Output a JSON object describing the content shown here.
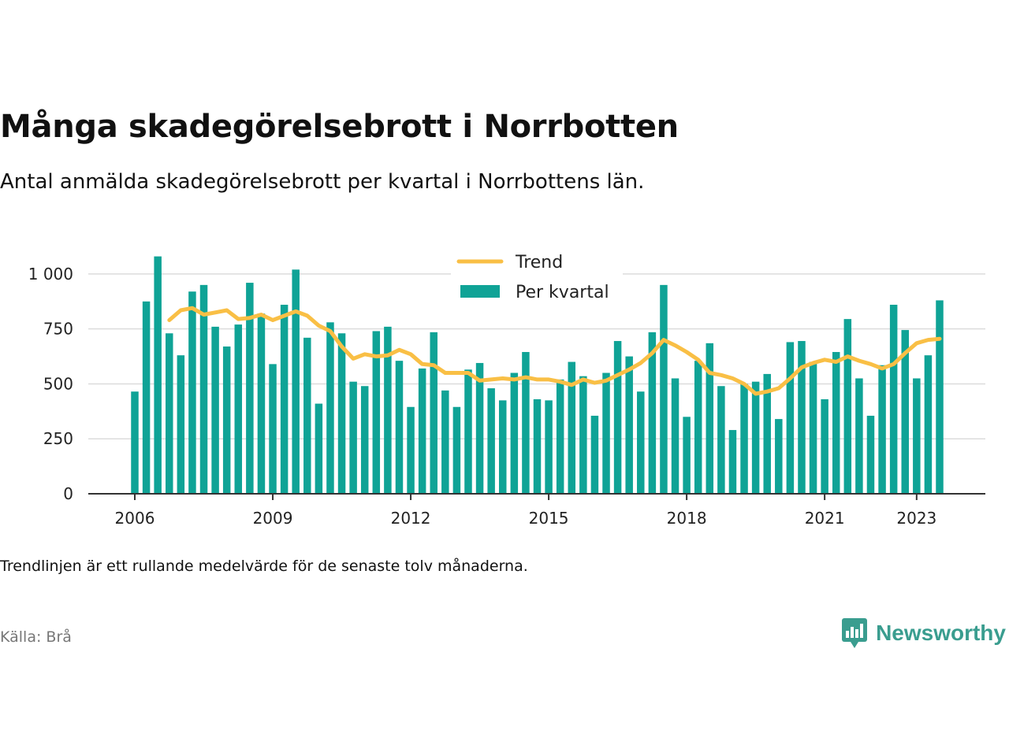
{
  "header": {
    "title": "Många skadegörelsebrott i Norrbotten",
    "subtitle": "Antal anmälda skadegörelsebrott per kvartal i Norrbottens län."
  },
  "footer": {
    "note": "Trendlinjen är ett rullande medelvärde för de senaste tolv månaderna.",
    "source": "Källa: Brå",
    "brand": "Newsworthy"
  },
  "colors": {
    "bar": "#0fa396",
    "trend": "#f9bf45",
    "grid": "#dcdcdc",
    "axis": "#333333",
    "brand": "#3a9d8f"
  },
  "chart_data": {
    "type": "bar",
    "title": "Många skadegörelsebrott i Norrbotten",
    "ylim": [
      0,
      1100
    ],
    "yticks": [
      0,
      250,
      500,
      750,
      1000
    ],
    "ytick_labels": [
      "0",
      "250",
      "500",
      "750",
      "1 000"
    ],
    "xticks": [
      2006,
      2009,
      2012,
      2015,
      2018,
      2021,
      2023
    ],
    "xtick_labels": [
      "2006",
      "2009",
      "2012",
      "2015",
      "2018",
      "2021",
      "2023"
    ],
    "grid": true,
    "legend_position": "top-center",
    "legend": [
      "Trend",
      "Per kvartal"
    ],
    "x": [
      2006.0,
      2006.25,
      2006.5,
      2006.75,
      2007.0,
      2007.25,
      2007.5,
      2007.75,
      2008.0,
      2008.25,
      2008.5,
      2008.75,
      2009.0,
      2009.25,
      2009.5,
      2009.75,
      2010.0,
      2010.25,
      2010.5,
      2010.75,
      2011.0,
      2011.25,
      2011.5,
      2011.75,
      2012.0,
      2012.25,
      2012.5,
      2012.75,
      2013.0,
      2013.25,
      2013.5,
      2013.75,
      2014.0,
      2014.25,
      2014.5,
      2014.75,
      2015.0,
      2015.25,
      2015.5,
      2015.75,
      2016.0,
      2016.25,
      2016.5,
      2016.75,
      2017.0,
      2017.25,
      2017.5,
      2017.75,
      2018.0,
      2018.25,
      2018.5,
      2018.75,
      2019.0,
      2019.25,
      2019.5,
      2019.75,
      2020.0,
      2020.25,
      2020.5,
      2020.75,
      2021.0,
      2021.25,
      2021.5,
      2021.75,
      2022.0,
      2022.25,
      2022.5,
      2022.75,
      2023.0,
      2023.25,
      2023.5
    ],
    "series": [
      {
        "name": "Per kvartal",
        "type": "bar",
        "values": [
          465,
          875,
          1080,
          730,
          630,
          920,
          950,
          760,
          670,
          770,
          960,
          820,
          590,
          860,
          1020,
          710,
          410,
          780,
          730,
          510,
          490,
          740,
          760,
          605,
          395,
          570,
          735,
          470,
          395,
          565,
          595,
          480,
          425,
          550,
          645,
          430,
          425,
          520,
          600,
          535,
          355,
          550,
          695,
          625,
          465,
          735,
          950,
          525,
          350,
          605,
          685,
          490,
          290,
          500,
          510,
          545,
          340,
          690,
          695,
          600,
          430,
          645,
          795,
          525,
          355,
          585,
          860,
          745,
          525,
          630,
          880
        ]
      },
      {
        "name": "Trend",
        "type": "line",
        "values": [
          null,
          null,
          null,
          790,
          835,
          845,
          815,
          825,
          835,
          795,
          800,
          815,
          790,
          810,
          830,
          810,
          765,
          740,
          670,
          615,
          635,
          625,
          630,
          655,
          635,
          590,
          585,
          550,
          550,
          550,
          515,
          520,
          525,
          520,
          530,
          520,
          520,
          510,
          495,
          520,
          505,
          515,
          540,
          565,
          595,
          640,
          700,
          675,
          645,
          610,
          550,
          540,
          525,
          500,
          455,
          465,
          480,
          525,
          575,
          595,
          610,
          600,
          625,
          605,
          590,
          570,
          590,
          640,
          685,
          700,
          705
        ]
      }
    ]
  }
}
